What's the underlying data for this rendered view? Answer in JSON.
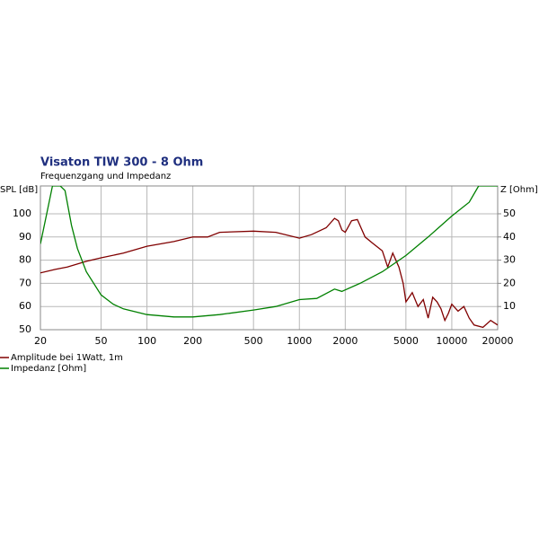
{
  "chart_data": {
    "type": "line",
    "title": "Visaton TIW 300 - 8 Ohm",
    "subtitle": "Frequenzgang und Impedanz",
    "ylabel": "SPL [dB]",
    "y2label": "Z [Ohm]",
    "log_x": true,
    "grid": true,
    "xlim": [
      20,
      20000
    ],
    "xticks": [
      20,
      50,
      100,
      200,
      500,
      1000,
      2000,
      5000,
      10000,
      20000
    ],
    "ylim": [
      50,
      112
    ],
    "yticks": [
      50,
      60,
      70,
      80,
      90,
      100
    ],
    "y2lim": [
      0,
      62
    ],
    "y2ticks": [
      10,
      20,
      30,
      40,
      50
    ],
    "series": [
      {
        "name": "Amplitude bei 1Watt, 1m",
        "color": "#800000",
        "axis": "y",
        "x": [
          20,
          25,
          30,
          40,
          50,
          70,
          100,
          150,
          200,
          250,
          300,
          500,
          700,
          1000,
          1200,
          1500,
          1700,
          1800,
          1900,
          2000,
          2200,
          2400,
          2700,
          3000,
          3500,
          3800,
          4100,
          4500,
          4800,
          5000,
          5500,
          6000,
          6500,
          7000,
          7500,
          8000,
          8500,
          9000,
          9500,
          10000,
          11000,
          12000,
          13000,
          14000,
          16000,
          18000,
          20000
        ],
        "values": [
          74.5,
          76,
          77,
          79.5,
          81,
          83,
          86,
          88,
          90,
          90,
          92,
          92.5,
          92,
          89.5,
          91,
          94,
          98,
          97,
          93,
          92,
          97,
          97.5,
          90,
          87.5,
          84,
          77,
          83,
          77,
          70,
          62,
          66,
          60,
          63,
          55,
          64,
          62,
          59,
          54,
          57,
          61,
          58,
          60,
          55,
          52,
          51,
          54,
          52
        ]
      },
      {
        "name": "Impedanz [Ohm]",
        "color": "#008000",
        "axis": "y2",
        "x": [
          20,
          22,
          24,
          27,
          29,
          32,
          35,
          40,
          50,
          60,
          70,
          100,
          150,
          200,
          300,
          500,
          700,
          1000,
          1300,
          1700,
          1900,
          2500,
          3500,
          5000,
          7000,
          10000,
          13000,
          15000,
          20000
        ],
        "values": [
          37,
          50,
          62,
          62,
          60,
          45,
          35,
          25,
          15,
          11,
          9,
          6.5,
          5.5,
          5.5,
          6.5,
          8.5,
          10,
          13,
          13.5,
          17.5,
          16.5,
          20,
          25,
          32,
          40,
          49,
          55,
          62,
          62
        ]
      }
    ]
  }
}
